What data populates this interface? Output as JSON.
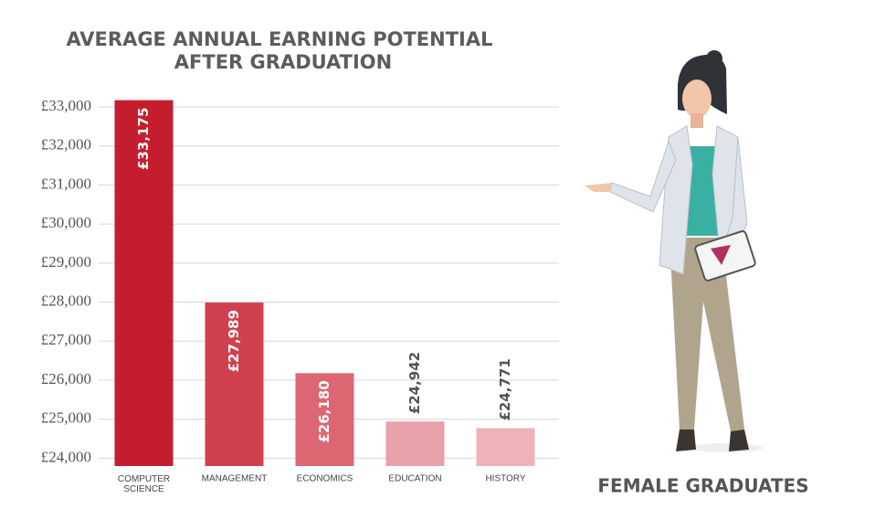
{
  "chart_data": {
    "type": "bar",
    "title": [
      "AVERAGE ANNUAL EARNING POTENTIAL",
      "AFTER GRADUATION"
    ],
    "categories": [
      "COMPUTER SCIENCE",
      "MANAGEMENT",
      "ECONOMICS",
      "EDUCATION",
      "HISTORY"
    ],
    "values": [
      33175,
      27989,
      26180,
      24942,
      24771
    ],
    "value_labels": [
      "£33,175",
      "£27,989",
      "£26,180",
      "£24,942",
      "£24,771"
    ],
    "colors": [
      "#c41e2e",
      "#d1404e",
      "#dc6773",
      "#e8a1a8",
      "#eeb3b9"
    ],
    "ylim": [
      23800,
      33400
    ],
    "yticks": [
      {
        "value": 24000,
        "label": "£24,000"
      },
      {
        "value": 25000,
        "label": "£25,000"
      },
      {
        "value": 26000,
        "label": "£26,000"
      },
      {
        "value": 27000,
        "label": "£27,000"
      },
      {
        "value": 28000,
        "label": "£28,000"
      },
      {
        "value": 29000,
        "label": "£29,000"
      },
      {
        "value": 30000,
        "label": "£30,000"
      },
      {
        "value": 31000,
        "label": "£31,000"
      },
      {
        "value": 32000,
        "label": "£32,000"
      },
      {
        "value": 33000,
        "label": "£33,000"
      }
    ],
    "grid": true,
    "caption": "FEMALE GRADUATES"
  }
}
